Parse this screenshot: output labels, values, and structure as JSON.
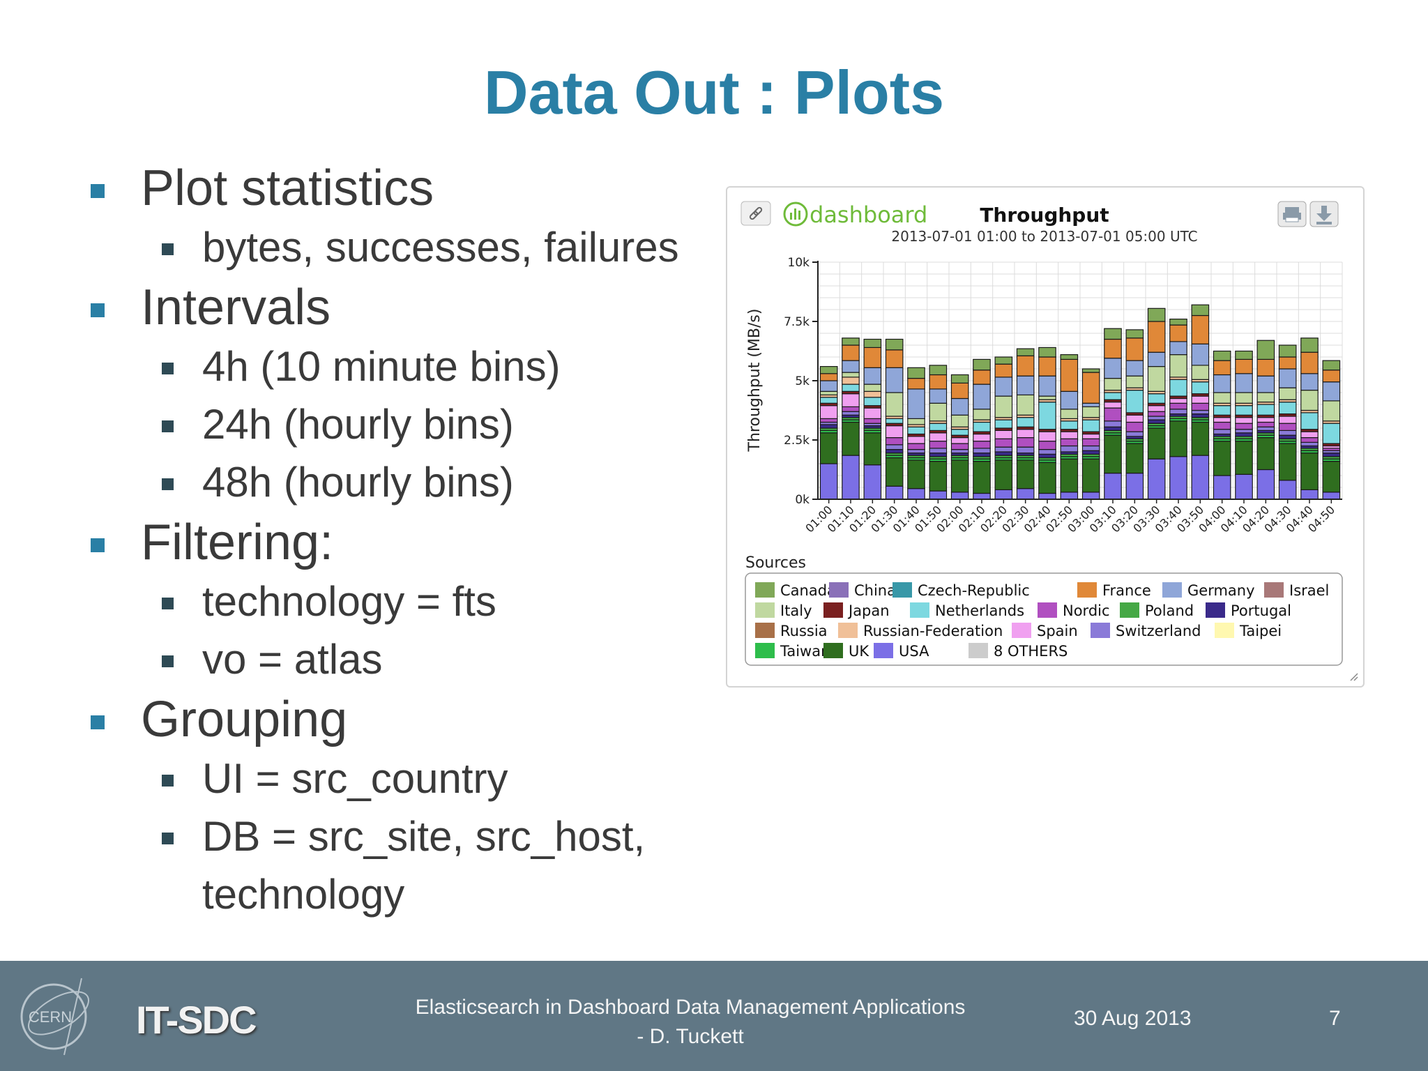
{
  "slide": {
    "title": "Data Out : Plots",
    "bullets": [
      {
        "text": "Plot statistics",
        "sub": [
          "bytes, successes, failures"
        ]
      },
      {
        "text": "Intervals",
        "sub": [
          "4h (10 minute bins)",
          "24h (hourly bins)",
          "48h (hourly bins)"
        ]
      },
      {
        "text": "Filtering:",
        "sub": [
          "technology = fts",
          "vo = atlas"
        ]
      },
      {
        "text": "Grouping",
        "sub": [
          "UI =  src_country",
          "DB = src_site, src_host, technology"
        ]
      }
    ]
  },
  "footer": {
    "logo_text": "CERN",
    "group": "IT-SDC",
    "talk_title_line1": "Elasticsearch in Dashboard Data Management  Applications",
    "talk_title_line2": "- D. Tuckett",
    "date": "30 Aug 2013",
    "page": "7"
  },
  "widget": {
    "logo_text": "dashboard",
    "sources_label": "Sources",
    "icons": [
      "link-icon",
      "print-icon",
      "download-icon"
    ]
  },
  "chart_data": {
    "type": "bar",
    "stacked": true,
    "title": "Throughput",
    "subtitle": "2013-07-01 01:00 to 2013-07-01 05:00 UTC",
    "ylabel": "Throughput (MB/s)",
    "xlabel": "",
    "ylim": [
      0,
      10000
    ],
    "yticks": [
      0,
      2500,
      5000,
      7500,
      10000
    ],
    "ytick_labels": [
      "0k",
      "2.5k",
      "5k",
      "7.5k",
      "10k"
    ],
    "grid": true,
    "legend_position": "bottom",
    "categories": [
      "01:00",
      "01:10",
      "01:20",
      "01:30",
      "01:40",
      "01:50",
      "02:00",
      "02:10",
      "02:20",
      "02:30",
      "02:40",
      "02:50",
      "03:00",
      "03:10",
      "03:20",
      "03:30",
      "03:40",
      "03:50",
      "04:00",
      "04:10",
      "04:20",
      "04:30",
      "04:40",
      "04:50"
    ],
    "series": [
      {
        "name": "USA",
        "color": "#7b6fe6",
        "values": [
          1500,
          1850,
          1450,
          550,
          450,
          350,
          300,
          250,
          400,
          450,
          250,
          300,
          300,
          1100,
          1100,
          1700,
          1800,
          1850,
          1000,
          1050,
          1250,
          800,
          400,
          300
        ]
      },
      {
        "name": "UK",
        "color": "#2f6e1f",
        "values": [
          1300,
          1400,
          1350,
          1200,
          1200,
          1250,
          1350,
          1350,
          1250,
          1200,
          1300,
          1400,
          1400,
          1600,
          1250,
          1300,
          1500,
          1400,
          1450,
          1400,
          1350,
          1550,
          1550,
          1300
        ]
      },
      {
        "name": "Taiwan",
        "color": "#2ebd4b",
        "values": [
          100,
          100,
          100,
          100,
          100,
          100,
          100,
          100,
          100,
          100,
          100,
          100,
          100,
          100,
          100,
          100,
          100,
          100,
          100,
          100,
          100,
          100,
          100,
          100
        ]
      },
      {
        "name": "Poland",
        "color": "#45a845",
        "values": [
          100,
          100,
          100,
          100,
          100,
          100,
          100,
          100,
          100,
          100,
          100,
          100,
          100,
          100,
          100,
          100,
          100,
          100,
          100,
          100,
          100,
          100,
          100,
          100
        ]
      },
      {
        "name": "Portugal",
        "color": "#3a2a8a",
        "values": [
          150,
          100,
          100,
          150,
          100,
          150,
          100,
          150,
          150,
          100,
          150,
          100,
          150,
          150,
          100,
          150,
          100,
          150,
          100,
          150,
          100,
          150,
          100,
          150
        ]
      },
      {
        "name": "Switzerland",
        "color": "#8a7ad8",
        "values": [
          100,
          150,
          100,
          200,
          150,
          200,
          150,
          200,
          200,
          250,
          200,
          250,
          200,
          250,
          200,
          150,
          200,
          150,
          200,
          150,
          150,
          200,
          150,
          100
        ]
      },
      {
        "name": "Nordic",
        "color": "#b04fc0",
        "values": [
          150,
          200,
          200,
          300,
          250,
          300,
          250,
          300,
          350,
          400,
          350,
          300,
          300,
          550,
          400,
          200,
          250,
          300,
          300,
          250,
          200,
          300,
          200,
          100
        ]
      },
      {
        "name": "Spain",
        "color": "#f0a0f0",
        "values": [
          550,
          550,
          450,
          500,
          300,
          350,
          250,
          300,
          350,
          350,
          400,
          300,
          200,
          250,
          300,
          250,
          200,
          300,
          200,
          250,
          200,
          300,
          250,
          100
        ]
      },
      {
        "name": "Japan",
        "color": "#7a2020",
        "values": [
          100,
          100,
          100,
          100,
          100,
          100,
          100,
          100,
          100,
          100,
          100,
          100,
          100,
          100,
          100,
          100,
          100,
          100,
          100,
          100,
          100,
          100,
          100,
          100
        ]
      },
      {
        "name": "Netherlands",
        "color": "#7dd8e0",
        "values": [
          250,
          300,
          350,
          200,
          300,
          300,
          250,
          400,
          350,
          400,
          1150,
          350,
          500,
          300,
          950,
          400,
          700,
          500,
          400,
          400,
          450,
          500,
          700,
          850
        ]
      },
      {
        "name": "Russian-Federation",
        "color": "#f0c098",
        "values": [
          100,
          300,
          250,
          100,
          100,
          100,
          100,
          100,
          100,
          100,
          100,
          100,
          100,
          100,
          100,
          100,
          100,
          100,
          100,
          100,
          100,
          100,
          100,
          100
        ]
      },
      {
        "name": "Italy",
        "color": "#c0d8a0",
        "values": [
          150,
          200,
          300,
          1000,
          250,
          750,
          500,
          450,
          900,
          850,
          150,
          400,
          450,
          500,
          500,
          1050,
          950,
          600,
          450,
          450,
          400,
          500,
          850,
          850
        ]
      },
      {
        "name": "Germany",
        "color": "#8fa6d8",
        "values": [
          450,
          500,
          700,
          1050,
          1250,
          600,
          700,
          1050,
          800,
          800,
          850,
          750,
          150,
          850,
          650,
          600,
          550,
          900,
          750,
          800,
          700,
          800,
          700,
          800
        ]
      },
      {
        "name": "France",
        "color": "#e08838",
        "values": [
          300,
          650,
          850,
          750,
          450,
          600,
          650,
          600,
          550,
          850,
          800,
          1350,
          1300,
          800,
          950,
          1300,
          700,
          1200,
          600,
          600,
          700,
          500,
          900,
          500
        ]
      },
      {
        "name": "Canada",
        "color": "#80a858",
        "values": [
          300,
          300,
          350,
          450,
          450,
          400,
          350,
          450,
          300,
          300,
          400,
          200,
          150,
          450,
          350,
          550,
          250,
          450,
          400,
          350,
          800,
          500,
          600,
          400
        ]
      }
    ],
    "legend": [
      "Canada",
      "China",
      "Czech-Republic",
      "France",
      "Germany",
      "Israel",
      "Italy",
      "Japan",
      "Netherlands",
      "Nordic",
      "Poland",
      "Portugal",
      "Russia",
      "Russian-Federation",
      "Spain",
      "Switzerland",
      "Taipei",
      "Taiwan",
      "UK",
      "USA",
      "8 OTHERS"
    ],
    "legend_colors": {
      "Canada": "#80a858",
      "China": "#8a70b8",
      "Czech-Republic": "#3898a8",
      "France": "#e08838",
      "Germany": "#8fa6d8",
      "Israel": "#a87878",
      "Italy": "#c0d8a0",
      "Japan": "#7a2020",
      "Netherlands": "#7dd8e0",
      "Nordic": "#b04fc0",
      "Poland": "#45a845",
      "Portugal": "#3a2a8a",
      "Russia": "#a87048",
      "Russian-Federation": "#f0c098",
      "Spain": "#f0a0f0",
      "Switzerland": "#8a7ad8",
      "Taipei": "#fff8b0",
      "Taiwan": "#2ebd4b",
      "UK": "#2f6e1f",
      "USA": "#7b6fe6",
      "8 OTHERS": "#cccccc"
    }
  }
}
